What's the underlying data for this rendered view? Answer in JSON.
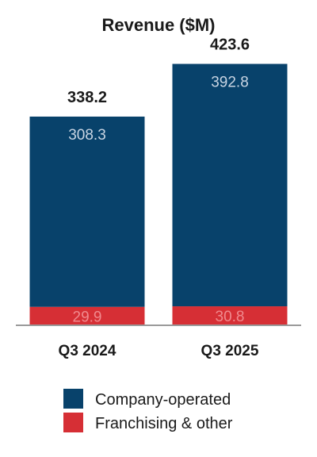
{
  "chart_data": {
    "type": "bar",
    "stacked": true,
    "title": "Revenue ($M)",
    "categories": [
      "Q3 2024",
      "Q3 2025"
    ],
    "series": [
      {
        "name": "Franchising & other",
        "values": [
          29.9,
          30.8
        ],
        "color": "#d62f35",
        "label_color": "#f08a8e"
      },
      {
        "name": "Company-operated",
        "values": [
          308.3,
          392.8
        ],
        "color": "#08426b",
        "label_color": "#c9d5e3"
      }
    ],
    "totals": [
      "338.2",
      "423.6"
    ],
    "value_labels": [
      [
        "29.9",
        "30.8"
      ],
      [
        "308.3",
        "392.8"
      ]
    ],
    "ylim": [
      0,
      450
    ],
    "grid": false,
    "legend": {
      "placement": "bottom",
      "order": [
        "Company-operated",
        "Franchising & other"
      ]
    }
  },
  "colors": {
    "axis": "#9a9a9a",
    "text": "#1a1a1a"
  }
}
